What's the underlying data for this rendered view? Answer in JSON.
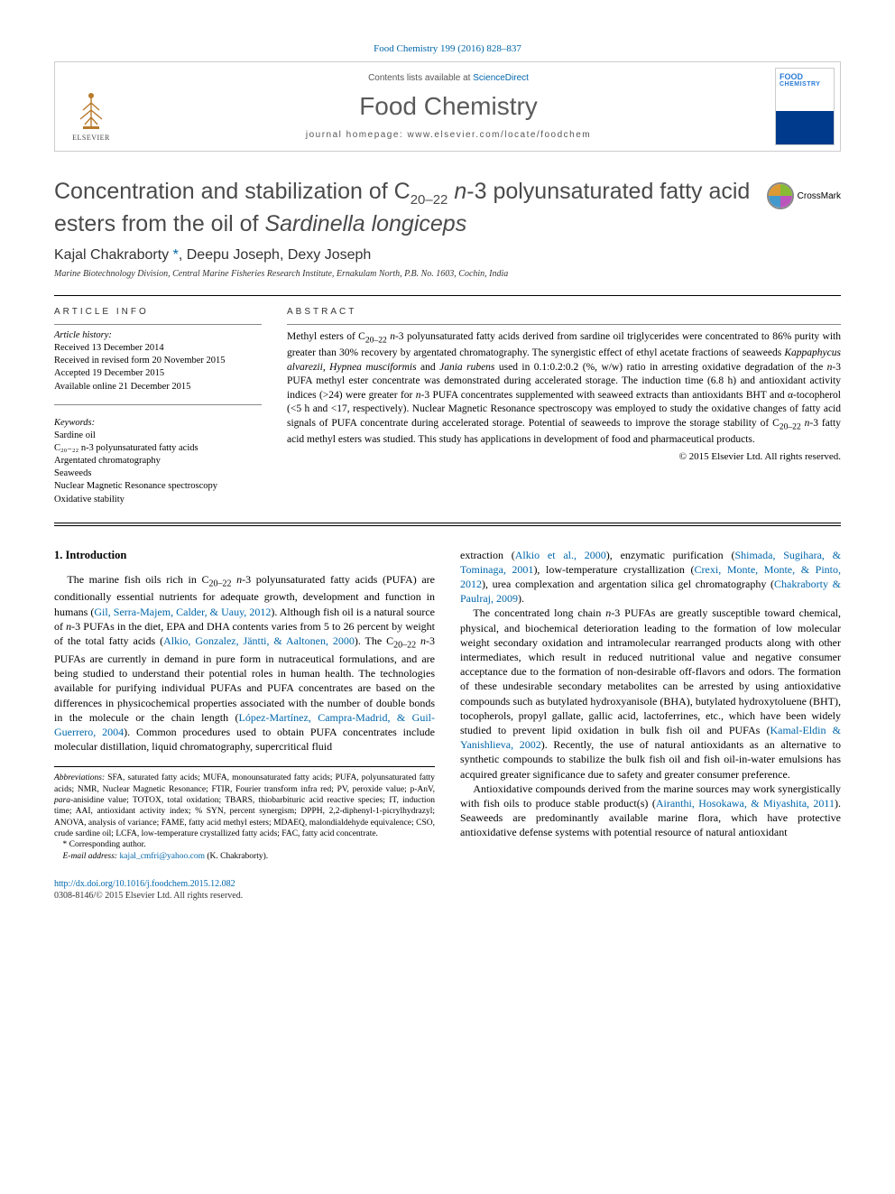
{
  "citation": "Food Chemistry 199 (2016) 828–837",
  "masthead": {
    "contents_prefix": "Contents lists available at ",
    "contents_link": "ScienceDirect",
    "journal": "Food Chemistry",
    "homepage_prefix": "journal homepage: ",
    "homepage": "www.elsevier.com/locate/foodchem",
    "publisher_name": "ELSEVIER",
    "cover_line1": "FOOD",
    "cover_line2": "CHEMISTRY"
  },
  "crossmark_label": "CrossMark",
  "title_html": "Concentration and stabilization of C<span class='sub'>20–22</span> <em>n</em>-3 polyunsaturated fatty acid esters from the oil of <em>Sardinella longiceps</em>",
  "authors_html": "Kajal Chakraborty <span class='corr'>*</span>, Deepu Joseph, Dexy Joseph",
  "affiliation": "Marine Biotechnology Division, Central Marine Fisheries Research Institute, Ernakulam North, P.B. No. 1603, Cochin, India",
  "labels": {
    "article_info": "ARTICLE INFO",
    "abstract": "ABSTRACT",
    "history": "Article history:",
    "keywords": "Keywords:"
  },
  "history": [
    "Received 13 December 2014",
    "Received in revised form 20 November 2015",
    "Accepted 19 December 2015",
    "Available online 21 December 2015"
  ],
  "keywords": [
    "Sardine oil",
    "C₂₀₋₂₂ n-3 polyunsaturated fatty acids",
    "Argentated chromatography",
    "Seaweeds",
    "Nuclear Magnetic Resonance spectroscopy",
    "Oxidative stability"
  ],
  "abstract_html": "Methyl esters of C<sub>20–22</sub> <em>n</em>-3 polyunsaturated fatty acids derived from sardine oil triglycerides were concentrated to 86% purity with greater than 30% recovery by argentated chromatography. The synergistic effect of ethyl acetate fractions of seaweeds <em>Kappaphycus alvarezii</em>, <em>Hypnea musciformis</em> and <em>Jania rubens</em> used in 0.1:0.2:0.2 (%, w/w) ratio in arresting oxidative degradation of the <em>n</em>-3 PUFA methyl ester concentrate was demonstrated during accelerated storage. The induction time (6.8 h) and antioxidant activity indices (&gt;24) were greater for <em>n</em>-3 PUFA concentrates supplemented with seaweed extracts than antioxidants BHT and α-tocopherol (&lt;5 h and &lt;17, respectively). Nuclear Magnetic Resonance spectroscopy was employed to study the oxidative changes of fatty acid signals of PUFA concentrate during accelerated storage. Potential of seaweeds to improve the storage stability of C<sub>20–22</sub> <em>n</em>-3 fatty acid methyl esters was studied. This study has applications in development of food and pharmaceutical products.",
  "copyright": "© 2015 Elsevier Ltd. All rights reserved.",
  "intro_heading": "1. Introduction",
  "body": {
    "p1_html": "The marine fish oils rich in C<sub>20–22</sub> <em>n</em>-3 polyunsaturated fatty acids (PUFA) are conditionally essential nutrients for adequate growth, development and function in humans (<span class='ref'>Gil, Serra-Majem, Calder, &amp; Uauy, 2012</span>). Although fish oil is a natural source of <em>n</em>-3 PUFAs in the diet, EPA and DHA contents varies from 5 to 26 percent by weight of the total fatty acids (<span class='ref'>Alkio, Gonzalez, Jäntti, &amp; Aaltonen, 2000</span>). The C<sub>20–22</sub> <em>n</em>-3 PUFAs are currently in demand in pure form in nutraceutical formulations, and are being studied to understand their potential roles in human health. The technologies available for purifying individual PUFAs and PUFA concentrates are based on the differences in physicochemical properties associated with the number of double bonds in the molecule or the chain length (<span class='ref'>López-Martínez, Campra-Madrid, &amp; Guil-Guerrero, 2004</span>). Common procedures used to obtain PUFA concentrates include molecular distillation, liquid chromatography, supercritical fluid",
    "p2_html": "extraction (<span class='ref'>Alkio et al., 2000</span>), enzymatic purification (<span class='ref'>Shimada, Sugihara, &amp; Tominaga, 2001</span>), low-temperature crystallization (<span class='ref'>Crexi, Monte, Monte, &amp; Pinto, 2012</span>), urea complexation and argentation silica gel chromatography (<span class='ref'>Chakraborty &amp; Paulraj, 2009</span>).",
    "p3_html": "The concentrated long chain <em>n</em>-3 PUFAs are greatly susceptible toward chemical, physical, and biochemical deterioration leading to the formation of low molecular weight secondary oxidation and intramolecular rearranged products along with other intermediates, which result in reduced nutritional value and negative consumer acceptance due to the formation of non-desirable off-flavors and odors. The formation of these undesirable secondary metabolites can be arrested by using antioxidative compounds such as butylated hydroxyanisole (BHA), butylated hydroxytoluene (BHT), tocopherols, propyl gallate, gallic acid, lactoferrines, etc., which have been widely studied to prevent lipid oxidation in bulk fish oil and PUFAs (<span class='ref'>Kamal-Eldin &amp; Yanishlieva, 2002</span>). Recently, the use of natural antioxidants as an alternative to synthetic compounds to stabilize the bulk fish oil and fish oil-in-water emulsions has acquired greater significance due to safety and greater consumer preference.",
    "p4_html": "Antioxidative compounds derived from the marine sources may work synergistically with fish oils to produce stable product(s) (<span class='ref'>Airanthi, Hosokawa, &amp; Miyashita, 2011</span>). Seaweeds are predominantly available marine flora, which have protective antioxidative defense systems with potential resource of natural antioxidant"
  },
  "footnotes": {
    "abbr_html": "<em>Abbreviations:</em> SFA, saturated fatty acids; MUFA, monounsaturated fatty acids; PUFA, polyunsaturated fatty acids; NMR, Nuclear Magnetic Resonance; FTIR, Fourier transform infra red; PV, peroxide value; p-AnV, <em>para</em>-anisidine value; TOTOX, total oxidation; TBARS, thiobarbituric acid reactive species; IT, induction time; AAI, antioxidant activity index; % SYN, percent synergism; DPPH, 2,2-diphenyl-1-picrylhydrazyl; ANOVA, analysis of variance; FAME, fatty acid methyl esters; MDAEQ, malondialdehyde equivalence; CSO, crude sardine oil; LCFA, low-temperature crystallized fatty acids; FAC, fatty acid concentrate.",
    "corr_label": "* Corresponding author.",
    "email_label": "E-mail address:",
    "email": "kajal_cmfri@yahoo.com",
    "email_person": "(K. Chakraborty)."
  },
  "footer": {
    "doi": "http://dx.doi.org/10.1016/j.foodchem.2015.12.082",
    "issn_line": "0308-8146/© 2015 Elsevier Ltd. All rights reserved."
  },
  "colors": {
    "link": "#0066aa",
    "text": "#000000",
    "muted": "#555555",
    "journal_gray": "#5a5a5a",
    "border": "#cccccc"
  },
  "typography": {
    "title_fontsize_pt": 19,
    "journal_fontsize_pt": 21,
    "body_fontsize_pt": 9,
    "abstract_fontsize_pt": 8.5,
    "footnote_fontsize_pt": 7
  }
}
